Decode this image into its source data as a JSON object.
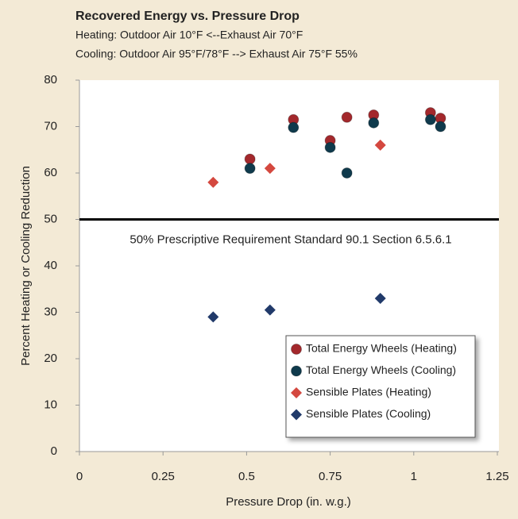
{
  "chart_data": {
    "type": "scatter",
    "title": "Recovered Energy vs. Pressure Drop",
    "subtitle": [
      "Heating: Outdoor Air 10°F <--Exhaust Air 70°F",
      "Cooling: Outdoor Air 95°F/78°F --> Exhaust Air 75°F 55%"
    ],
    "x_label": "Pressure Drop (in. w.g.)",
    "y_label": "Percent Heating or Cooling Reduction",
    "xlim": [
      0,
      1.25
    ],
    "xticks": [
      0,
      0.25,
      0.5,
      0.75,
      1,
      1.25
    ],
    "ylim": [
      0,
      80
    ],
    "yticks": [
      0,
      10,
      20,
      30,
      40,
      50,
      60,
      70,
      80
    ],
    "grid": false,
    "legend": "lower right",
    "reference_line": {
      "value": 50,
      "label": "50% Prescriptive Requirement Standard 90.1 Section 6.5.6.1"
    },
    "series": [
      {
        "name": "Total Energy Wheels (Heating)",
        "color": "#a3282c",
        "marker": "circle",
        "x": [
          0.51,
          0.64,
          0.75,
          0.8,
          0.88,
          1.05,
          1.08
        ],
        "values": [
          63,
          71.5,
          67,
          72,
          72.5,
          73,
          71.8
        ]
      },
      {
        "name": "Total Energy Wheels (Cooling)",
        "color": "#0f3a4c",
        "marker": "circle",
        "x": [
          0.51,
          0.64,
          0.75,
          0.8,
          0.88,
          1.05,
          1.08
        ],
        "values": [
          61,
          69.8,
          65.5,
          60,
          70.8,
          71.5,
          70
        ]
      },
      {
        "name": "Sensible Plates (Heating)",
        "color": "#d4483f",
        "marker": "diamond",
        "x": [
          0.4,
          0.57,
          0.9
        ],
        "values": [
          58,
          61,
          66
        ]
      },
      {
        "name": "Sensible Plates (Cooling)",
        "color": "#213a6a",
        "marker": "diamond",
        "x": [
          0.4,
          0.57,
          0.9
        ],
        "values": [
          29,
          30.5,
          33
        ]
      }
    ]
  }
}
